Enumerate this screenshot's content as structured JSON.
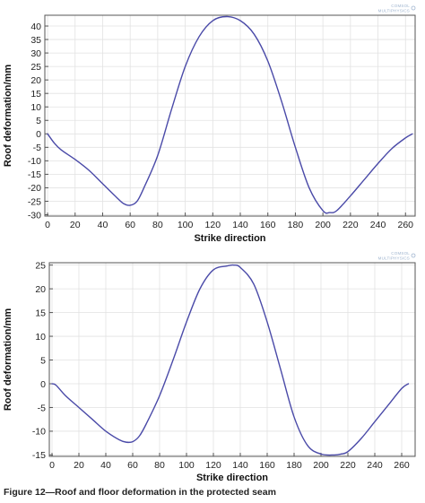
{
  "figure": {
    "caption": "Figure 12—Roof and floor deformation in the protected seam",
    "watermark_lines": [
      "COMSOL",
      "MULTIPHYSICS"
    ]
  },
  "colors": {
    "series_line": "#4a4aa8",
    "grid": "#e2e2e2",
    "axis": "#555555",
    "watermark": "#9fb4cf"
  },
  "chart_data": [
    {
      "type": "line",
      "xlabel": "Strike direction",
      "ylabel": "Roof deformation/mm",
      "xlim": [
        -2,
        267
      ],
      "ylim": [
        -30.5,
        44
      ],
      "xticks": [
        0,
        20,
        40,
        60,
        80,
        100,
        120,
        140,
        160,
        180,
        200,
        220,
        240,
        260
      ],
      "yticks": [
        -30,
        -25,
        -20,
        -15,
        -10,
        -5,
        0,
        5,
        10,
        15,
        20,
        25,
        30,
        35,
        40
      ],
      "grid": true,
      "series": [
        {
          "x": [
            0,
            5,
            10,
            20,
            30,
            40,
            50,
            55,
            60,
            65,
            70,
            80,
            90,
            100,
            110,
            120,
            130,
            140,
            150,
            160,
            170,
            180,
            190,
            200,
            205,
            210,
            220,
            230,
            240,
            250,
            260,
            265
          ],
          "y": [
            0,
            -3.5,
            -6,
            -9.5,
            -13.5,
            -18.5,
            -23.5,
            -25.8,
            -26.5,
            -25,
            -20,
            -8,
            9,
            25,
            36,
            42,
            43.5,
            42,
            37,
            27,
            12,
            -5,
            -20,
            -28.5,
            -29.2,
            -28.5,
            -23,
            -17,
            -11,
            -5.5,
            -1.5,
            0
          ]
        }
      ]
    },
    {
      "type": "line",
      "xlabel": "Strike direction",
      "ylabel": "Roof deformation/mm",
      "xlim": [
        -2,
        270
      ],
      "ylim": [
        -15.3,
        25.5
      ],
      "xticks": [
        0,
        20,
        40,
        60,
        80,
        100,
        120,
        140,
        160,
        180,
        200,
        220,
        240,
        260
      ],
      "yticks": [
        -15,
        -10,
        -5,
        0,
        5,
        10,
        15,
        20,
        25
      ],
      "grid": true,
      "series": [
        {
          "x": [
            0,
            3,
            10,
            20,
            30,
            40,
            50,
            55,
            60,
            65,
            70,
            80,
            90,
            100,
            110,
            120,
            130,
            135,
            140,
            150,
            160,
            170,
            180,
            190,
            200,
            210,
            215,
            220,
            230,
            240,
            250,
            260,
            265
          ],
          "y": [
            0,
            -0.3,
            -2.5,
            -5,
            -7.5,
            -10,
            -11.8,
            -12.3,
            -12.2,
            -11,
            -8.5,
            -2.5,
            5,
            13,
            20,
            24,
            24.8,
            25,
            24.5,
            21,
            13,
            3,
            -7,
            -13,
            -14.8,
            -15,
            -14.8,
            -14.3,
            -11.5,
            -8,
            -4.5,
            -1,
            0
          ]
        }
      ]
    }
  ]
}
